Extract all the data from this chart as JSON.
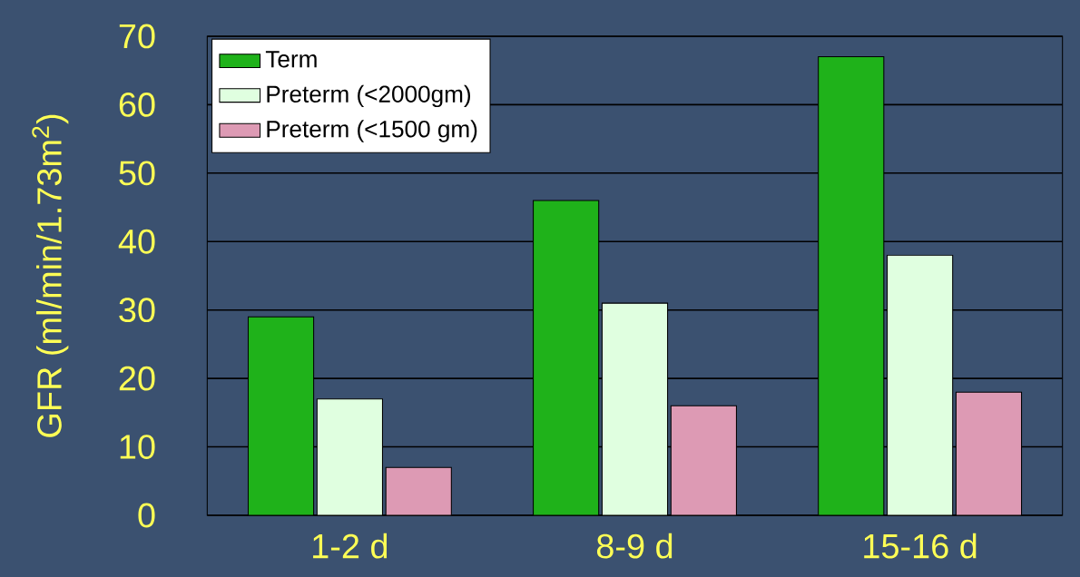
{
  "chart_data": {
    "type": "bar",
    "ylabel": "GFR (ml/min/1.73m$^{2}$)",
    "categories": [
      "1-2 d",
      "8-9 d",
      "15-16 d"
    ],
    "series": [
      {
        "name": "Term",
        "color": "#1fb21a",
        "values": [
          29,
          46,
          67
        ]
      },
      {
        "name": "Preterm (<2000gm)",
        "color": "#e0ffe0",
        "values": [
          17,
          31,
          38
        ]
      },
      {
        "name": "Preterm (<1500 gm)",
        "color": "#dd9ab4",
        "values": [
          7,
          16,
          18
        ]
      }
    ],
    "ylim": [
      0,
      70
    ],
    "yticks": [
      0,
      10,
      20,
      30,
      40,
      50,
      60,
      70
    ],
    "grid": "y",
    "legend": "top left"
  }
}
